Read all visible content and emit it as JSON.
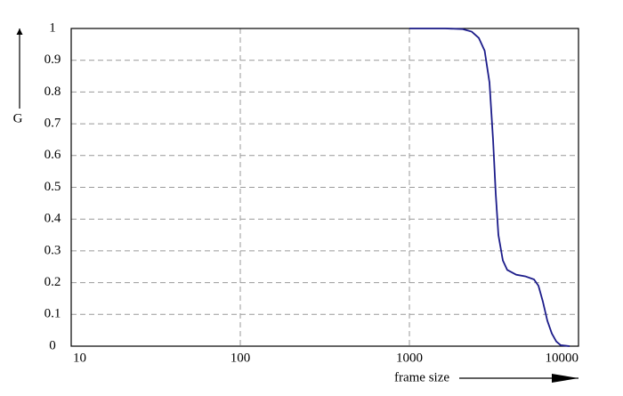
{
  "chart_data": {
    "type": "line",
    "xlabel": "frame size",
    "ylabel": "G",
    "xscale": "log",
    "xlim": [
      10,
      10000
    ],
    "xticks": [
      10,
      100,
      1000,
      10000
    ],
    "ylim": [
      0,
      1
    ],
    "yticks": [
      0,
      0.1,
      0.2,
      0.3,
      0.4,
      0.5,
      0.6,
      0.7,
      0.8,
      0.9,
      1
    ],
    "grid": true,
    "series": [
      {
        "name": "G",
        "color": "#1c1c8a",
        "x": [
          1000,
          1624,
          2069,
          2336,
          2574,
          2786,
          2976,
          3124,
          3240,
          3360,
          3569,
          3790,
          4281,
          4833,
          5456,
          5797,
          6158,
          6543,
          6952,
          7386,
          7848,
          8859
        ],
        "values": [
          1,
          1,
          0.998,
          0.99,
          0.97,
          0.93,
          0.83,
          0.65,
          0.48,
          0.35,
          0.27,
          0.24,
          0.225,
          0.22,
          0.21,
          0.19,
          0.14,
          0.08,
          0.04,
          0.015,
          0.003,
          0
        ]
      }
    ]
  }
}
